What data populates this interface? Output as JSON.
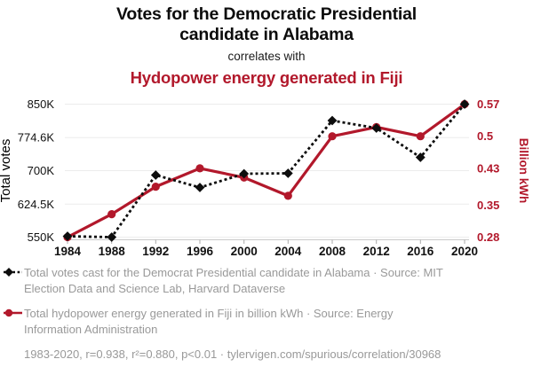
{
  "header": {
    "title_line1": "Votes for the Democratic Presidential",
    "title_line2": "candidate in Alabama",
    "subtitle": "correlates with",
    "red_title": "Hydopower energy generated in Fiji"
  },
  "chart_data": {
    "type": "line",
    "x": [
      1984,
      1988,
      1992,
      1996,
      2000,
      2004,
      2008,
      2012,
      2016,
      2020
    ],
    "x_tick_labels": [
      "1984",
      "1988",
      "1992",
      "1996",
      "2000",
      "2004",
      "2008",
      "2012",
      "2016",
      "2020"
    ],
    "series": [
      {
        "name": "Total votes cast for the Democrat Presidential candidate in Alabama",
        "axis": "left",
        "color": "#0d0d0d",
        "line_style": "dashed",
        "marker": "diamond",
        "values": [
          552000,
          550000,
          690000,
          662000,
          693000,
          694000,
          813000,
          796000,
          730000,
          850000
        ]
      },
      {
        "name": "Total hydopower energy generated in Fiji in billion kWh",
        "axis": "right",
        "color": "#b2182b",
        "line_style": "solid",
        "marker": "circle",
        "values": [
          0.28,
          0.33,
          0.39,
          0.43,
          0.41,
          0.37,
          0.5,
          0.52,
          0.5,
          0.57
        ]
      }
    ],
    "left_axis": {
      "label": "Total votes",
      "min": 550000,
      "max": 850000,
      "tick_labels": [
        "850K",
        "774.6K",
        "700K",
        "624.5K",
        "550K"
      ],
      "tick_values": [
        850000,
        774600,
        700000,
        624500,
        550000
      ]
    },
    "right_axis": {
      "label": "Billion kWh",
      "min": 0.28,
      "max": 0.57,
      "tick_labels": [
        "0.57",
        "0.5",
        "0.43",
        "0.35",
        "0.28"
      ],
      "tick_values": [
        0.57,
        0.5,
        0.43,
        0.35,
        0.28
      ]
    },
    "grid": true,
    "legend_position": "bottom-left"
  },
  "legend": {
    "items": [
      {
        "icon": "black-diamond-dashed-line",
        "text": "Total votes cast for the Democrat Presidential candidate in Alabama · Source: MIT Election Data and Science Lab, Harvard Dataverse"
      },
      {
        "icon": "red-circle-solid-line",
        "text": "Total hydopower energy generated in Fiji in billion kWh · Source: Energy Information Administration"
      }
    ]
  },
  "footer": {
    "stats": "1983-2020, r=0.938, r²=0.880, p<0.01 · tylervigen.com/spurious/correlation/30968"
  },
  "colors": {
    "accent_red": "#b2182b",
    "series_black": "#0d0d0d",
    "text_gray": "#999999",
    "grid": "#ececec",
    "axis_line": "#c9c9c9",
    "tick": "#aaaaaa"
  }
}
